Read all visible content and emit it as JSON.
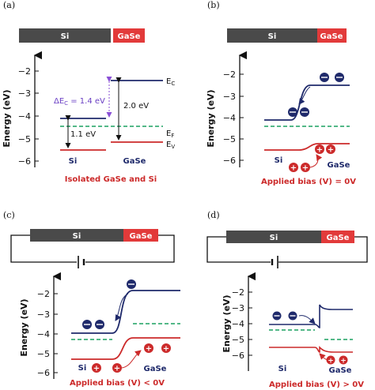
{
  "colors": {
    "si_bar": "#4a4a4a",
    "gase_bar": "#e23a3a",
    "conduction_band": "#1f2a6b",
    "valence_band": "#cc2a2a",
    "fermi_level": "#1aa060",
    "electron": "#1f2a6b",
    "hole": "#cc2a2a",
    "dc_arrow": "#8a4fd6"
  },
  "panels": {
    "a": {
      "label": "(a)",
      "bar": {
        "si": "Si",
        "gase": "GaSe"
      },
      "ylabel": "Energy (eV)",
      "yticks": [
        "−2",
        "−3",
        "−4",
        "−5",
        "−6"
      ],
      "delta_ec": "ΔE",
      "delta_ec_sub": "C",
      "delta_ec_value": " = 1.4 eV",
      "gap_si": "1.1 eV",
      "gap_gase": "2.0 eV",
      "ec_label": "E",
      "ec_sub": "C",
      "ef_label": "E",
      "ef_sub": "F",
      "ev_label": "E",
      "ev_sub": "V",
      "si_label": "Si",
      "gase_label": "GaSe",
      "caption": "Isolated GaSe and Si"
    },
    "b": {
      "label": "(b)",
      "bar": {
        "si": "Si",
        "gase": "GaSe"
      },
      "ylabel": "Energy (eV)",
      "yticks": [
        "−2",
        "−3",
        "−4",
        "−5",
        "−6"
      ],
      "si_label": "Si",
      "gase_label": "GaSe",
      "caption": "Applied bias (V) = 0V"
    },
    "c": {
      "label": "(c)",
      "bar": {
        "si": "Si",
        "gase": "GaSe"
      },
      "ylabel": "Energy (eV)",
      "yticks": [
        "−2",
        "−3",
        "−4",
        "−5",
        "−6"
      ],
      "si_label": "Si",
      "gase_label": "GaSe",
      "caption": "Applied bias (V) < 0V"
    },
    "d": {
      "label": "(d)",
      "bar": {
        "si": "Si",
        "gase": "GaSe"
      },
      "ylabel": "Energy (eV)",
      "yticks": [
        "−2",
        "−3",
        "−4",
        "−5",
        "−6"
      ],
      "si_label": "Si",
      "gase_label": "GaSe",
      "caption": "Applied bias (V) > 0V"
    }
  }
}
